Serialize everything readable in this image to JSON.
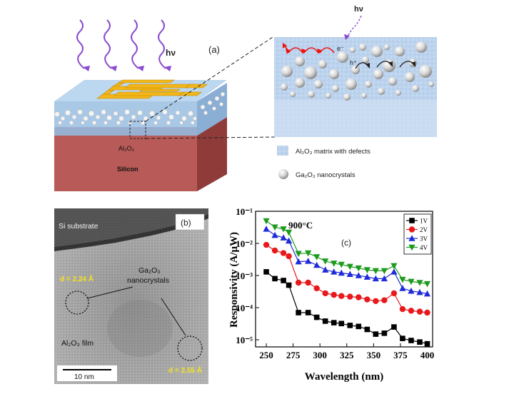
{
  "panel_a": {
    "label": "(a)",
    "hv_left": "hν",
    "hv_right": "hν",
    "layer_al2o3": "Al₂O₃",
    "layer_silicon": "Silicon",
    "electron": "e⁻",
    "hole": "h⁺",
    "legend": {
      "matrix": "Al₂O₃ matrix with defects",
      "nanocrystals": "Ga₂O₃ nanocrystals"
    }
  },
  "panel_b": {
    "label": "(b)",
    "substrate": "Si substrate",
    "d_spacing_1": "d = 2.24 Å",
    "d_spacing_2": "d = 2.55 Å",
    "nanocrystals_line1": "Ga₂O₃",
    "nanocrystals_line2": "nanocrystals",
    "film": "Al₂O₃ film",
    "scale_bar": "10 nm"
  },
  "colors": {
    "silicon": "#b85a58",
    "al2o3": "#a9c8e6",
    "electrode": "#f2b618",
    "photon": "#8b4bd0",
    "series_1V": "#000000",
    "series_2V": "#e8191c",
    "series_3V": "#1e2bd8",
    "series_4V": "#1e9a1e"
  },
  "chart_data": {
    "type": "line",
    "panel_label": "(c)",
    "annotation": "900°C",
    "xlabel": "Wavelength (nm)",
    "ylabel": "Responsivity (A/μW)",
    "x_scale": "linear",
    "y_scale": "log",
    "xlim": [
      240,
      405
    ],
    "ylim": [
      6e-06,
      0.1
    ],
    "x_ticks": [
      "250",
      "275",
      "300",
      "325",
      "350",
      "375",
      "400"
    ],
    "y_ticks": [
      "10⁻⁵",
      "10⁻⁴",
      "10⁻³",
      "10⁻²",
      "10⁻¹"
    ],
    "legend_position": "top-right",
    "x": [
      250,
      258,
      266,
      271,
      280,
      289,
      297,
      305,
      313,
      320,
      328,
      336,
      344,
      352,
      360,
      369,
      377,
      385,
      393,
      400
    ],
    "series": [
      {
        "name": "1V",
        "marker": "square",
        "values": [
          0.0013,
          0.0008,
          0.0007,
          0.0005,
          7e-05,
          7e-05,
          5e-05,
          3.8e-05,
          3.4e-05,
          3.2e-05,
          2.8e-05,
          2.6e-05,
          2.1e-05,
          1.5e-05,
          1.6e-05,
          2.5e-05,
          1.1e-05,
          9.5e-06,
          8.5e-06,
          7.5e-06
        ]
      },
      {
        "name": "2V",
        "marker": "circle",
        "values": [
          0.009,
          0.006,
          0.005,
          0.004,
          0.0006,
          0.0006,
          0.0004,
          0.00028,
          0.00025,
          0.00023,
          0.00022,
          0.00021,
          0.00018,
          0.00016,
          0.00017,
          0.00028,
          9e-05,
          8e-05,
          7.5e-05,
          7e-05
        ]
      },
      {
        "name": "3V",
        "marker": "triangle-up",
        "values": [
          0.028,
          0.018,
          0.015,
          0.012,
          0.0027,
          0.0028,
          0.0021,
          0.0015,
          0.0013,
          0.0012,
          0.0011,
          0.001,
          0.0009,
          0.0008,
          0.0008,
          0.0013,
          0.0004,
          0.00033,
          0.0003,
          0.00027
        ]
      },
      {
        "name": "4V",
        "marker": "triangle-down",
        "values": [
          0.05,
          0.032,
          0.028,
          0.022,
          0.0048,
          0.005,
          0.0038,
          0.0028,
          0.0024,
          0.0022,
          0.0019,
          0.0017,
          0.0015,
          0.0014,
          0.0014,
          0.002,
          0.00075,
          0.00065,
          0.0006,
          0.00055
        ]
      }
    ]
  }
}
